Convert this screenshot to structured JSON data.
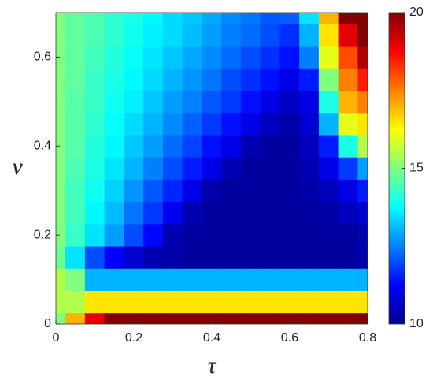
{
  "chart_data": {
    "type": "heatmap",
    "x_label": "τ",
    "y_label": "ν",
    "x": [
      0,
      0.05,
      0.1,
      0.15,
      0.2,
      0.25,
      0.3,
      0.35,
      0.4,
      0.45,
      0.5,
      0.55,
      0.6,
      0.65,
      0.7,
      0.75,
      0.8
    ],
    "y": [
      0,
      0.05,
      0.1,
      0.15,
      0.2,
      0.25,
      0.3,
      0.35,
      0.4,
      0.45,
      0.5,
      0.55,
      0.6,
      0.65,
      0.7
    ],
    "z": [
      [
        15,
        17,
        19,
        20,
        20,
        20,
        20,
        20,
        20,
        20,
        20,
        20,
        20,
        20,
        20,
        20,
        20
      ],
      [
        15.5,
        15.5,
        16.5,
        16.5,
        16.5,
        16.5,
        16.5,
        16.5,
        16.5,
        16.5,
        16.5,
        16.5,
        16.5,
        16.5,
        16.5,
        16.5,
        16.5
      ],
      [
        15.5,
        15,
        13,
        13,
        13,
        13,
        13,
        13,
        13,
        13,
        13,
        13,
        13,
        13,
        13,
        13,
        13
      ],
      [
        14.8,
        13.5,
        12,
        11.2,
        10.8,
        10.5,
        10.4,
        10.3,
        10.3,
        10.3,
        10.3,
        10.3,
        10.3,
        10.3,
        10.3,
        10.3,
        10.4
      ],
      [
        15,
        14.3,
        13.5,
        12.8,
        12,
        11.3,
        10.5,
        10.3,
        10.3,
        10.3,
        10.3,
        10.3,
        10.3,
        10.3,
        10.3,
        10.3,
        10.5
      ],
      [
        15,
        14.4,
        13.7,
        13.1,
        12.4,
        11.8,
        11.1,
        10.5,
        10.3,
        10.3,
        10.3,
        10.3,
        10.3,
        10.3,
        10.4,
        10.6,
        10.8
      ],
      [
        15,
        14.4,
        13.9,
        13.3,
        12.7,
        12.1,
        11.6,
        11,
        10.4,
        10.3,
        10.3,
        10.3,
        10.3,
        10.4,
        10.6,
        11,
        11.5
      ],
      [
        15,
        14.5,
        14,
        13.5,
        13,
        12.5,
        12,
        11.5,
        11,
        10.5,
        10.3,
        10.3,
        10.3,
        10.5,
        11,
        11.8,
        12.8
      ],
      [
        15,
        14.6,
        14.1,
        13.7,
        13.2,
        12.8,
        12.3,
        11.9,
        11.4,
        11,
        10.5,
        10.3,
        10.3,
        10.6,
        11.5,
        14,
        15.5
      ],
      [
        15,
        14.6,
        14.2,
        13.8,
        13.4,
        13,
        12.6,
        12.2,
        11.8,
        11.4,
        11,
        10.6,
        10.4,
        10.8,
        13,
        16,
        16.5
      ],
      [
        15,
        14.6,
        14.3,
        13.9,
        13.6,
        13.2,
        12.8,
        12.5,
        12.1,
        11.8,
        11.4,
        11,
        10.7,
        11,
        14,
        17,
        17.5
      ],
      [
        15,
        14.7,
        14.3,
        14,
        13.7,
        13.4,
        13,
        12.7,
        12.4,
        12,
        11.7,
        11.4,
        11,
        11.5,
        15,
        17.5,
        18.5
      ],
      [
        15,
        14.7,
        14.4,
        14.1,
        13.8,
        13.5,
        13.2,
        12.9,
        12.6,
        12.3,
        12,
        11.7,
        11.4,
        12.5,
        16,
        18,
        19.5
      ],
      [
        15,
        14.7,
        14.5,
        14.2,
        13.9,
        13.6,
        13.4,
        13.1,
        12.8,
        12.5,
        12.3,
        12,
        11.7,
        13,
        16.5,
        19,
        20
      ],
      [
        15,
        14.7,
        14.5,
        14.2,
        14,
        13.7,
        13.4,
        13.2,
        12.9,
        12.6,
        12.4,
        12.1,
        12.2,
        13.5,
        17,
        20,
        20
      ]
    ],
    "colormap": "jet",
    "xlim": [
      0,
      0.8
    ],
    "xticks": [
      0,
      0.2,
      0.4,
      0.6,
      0.8
    ],
    "ylim": [
      0,
      0.7
    ],
    "yticks": [
      0,
      0.2,
      0.4,
      0.6
    ],
    "clim": [
      10,
      20
    ],
    "cticks": [
      10,
      15,
      20
    ]
  }
}
